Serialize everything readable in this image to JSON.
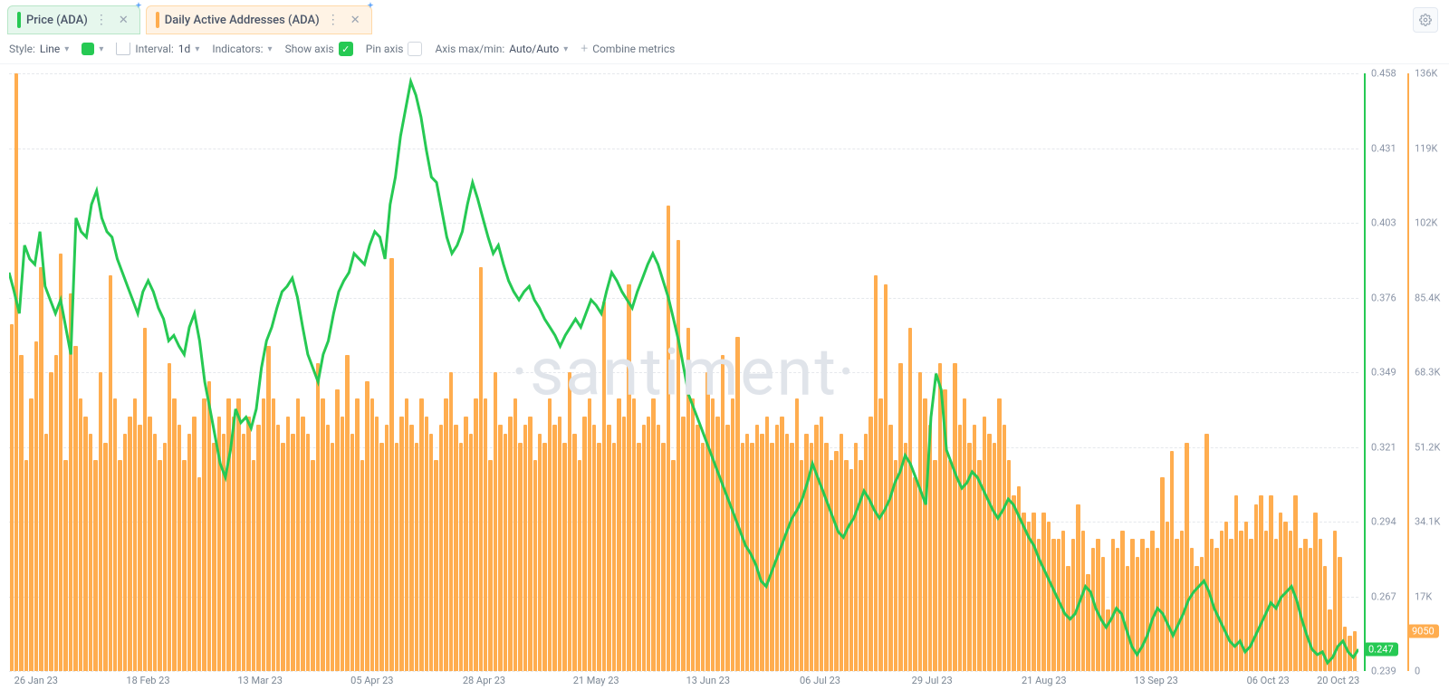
{
  "tabs": [
    {
      "label": "Price (ADA)",
      "color": "#26c953",
      "class": "price"
    },
    {
      "label": "Daily Active Addresses (ADA)",
      "color": "#ffad4f",
      "class": "daa"
    }
  ],
  "toolbar": {
    "style_label": "Style:",
    "style_value": "Line",
    "interval_label": "Interval:",
    "interval_value": "1d",
    "indicators_label": "Indicators:",
    "show_axis_label": "Show axis",
    "pin_axis_label": "Pin axis",
    "axis_minmax_label": "Axis max/min:",
    "axis_minmax_value": "Auto/Auto",
    "combine_label": "Combine metrics"
  },
  "watermark": "·santiment·",
  "colors": {
    "price_line": "#26c953",
    "bar_fill": "#ffad4f",
    "grid": "#e5e8ec",
    "background": "#ffffff",
    "axis_text": "#8a94a6",
    "badge_green": "#26c953",
    "badge_orange": "#ffad4f"
  },
  "chart": {
    "type": "combo-line-bar",
    "x_labels": [
      "26 Jan 23",
      "18 Feb 23",
      "13 Mar 23",
      "05 Apr 23",
      "28 Apr 23",
      "21 May 23",
      "13 Jun 23",
      "06 Jul 23",
      "29 Jul 23",
      "21 Aug 23",
      "13 Sep 23",
      "06 Oct 23",
      "20 Oct 23"
    ],
    "x_positions_pct": [
      2,
      10.3,
      18.6,
      26.9,
      35.2,
      43.5,
      51.8,
      60.1,
      68.4,
      76.7,
      85,
      93.3,
      98.5
    ],
    "price": {
      "ylim": [
        0.239,
        0.458
      ],
      "yticks": [
        0.458,
        0.431,
        0.403,
        0.376,
        0.349,
        0.321,
        0.294,
        0.267,
        0.239
      ],
      "current_badge": "0.247",
      "series": [
        0.385,
        0.378,
        0.37,
        0.395,
        0.39,
        0.388,
        0.4,
        0.38,
        0.375,
        0.37,
        0.375,
        0.365,
        0.355,
        0.405,
        0.4,
        0.398,
        0.41,
        0.415,
        0.405,
        0.4,
        0.398,
        0.39,
        0.385,
        0.38,
        0.375,
        0.37,
        0.378,
        0.382,
        0.378,
        0.372,
        0.368,
        0.36,
        0.362,
        0.358,
        0.355,
        0.365,
        0.37,
        0.36,
        0.345,
        0.335,
        0.325,
        0.315,
        0.31,
        0.32,
        0.335,
        0.33,
        0.332,
        0.328,
        0.335,
        0.35,
        0.36,
        0.365,
        0.372,
        0.378,
        0.38,
        0.383,
        0.376,
        0.365,
        0.355,
        0.35,
        0.345,
        0.355,
        0.36,
        0.37,
        0.378,
        0.382,
        0.385,
        0.392,
        0.39,
        0.388,
        0.395,
        0.4,
        0.398,
        0.39,
        0.41,
        0.42,
        0.435,
        0.445,
        0.455,
        0.45,
        0.442,
        0.43,
        0.42,
        0.418,
        0.408,
        0.398,
        0.392,
        0.395,
        0.4,
        0.41,
        0.418,
        0.412,
        0.405,
        0.398,
        0.392,
        0.395,
        0.388,
        0.382,
        0.378,
        0.375,
        0.378,
        0.38,
        0.375,
        0.372,
        0.368,
        0.365,
        0.362,
        0.358,
        0.362,
        0.365,
        0.368,
        0.365,
        0.37,
        0.375,
        0.373,
        0.37,
        0.378,
        0.385,
        0.382,
        0.378,
        0.375,
        0.372,
        0.378,
        0.383,
        0.388,
        0.392,
        0.388,
        0.382,
        0.376,
        0.368,
        0.36,
        0.35,
        0.34,
        0.335,
        0.33,
        0.325,
        0.32,
        0.315,
        0.31,
        0.305,
        0.3,
        0.295,
        0.29,
        0.285,
        0.282,
        0.278,
        0.272,
        0.27,
        0.275,
        0.28,
        0.285,
        0.29,
        0.295,
        0.298,
        0.302,
        0.308,
        0.315,
        0.31,
        0.305,
        0.3,
        0.295,
        0.29,
        0.288,
        0.292,
        0.295,
        0.3,
        0.305,
        0.302,
        0.298,
        0.295,
        0.298,
        0.302,
        0.308,
        0.312,
        0.318,
        0.315,
        0.31,
        0.305,
        0.3,
        0.332,
        0.348,
        0.342,
        0.32,
        0.315,
        0.31,
        0.306,
        0.308,
        0.312,
        0.31,
        0.306,
        0.302,
        0.298,
        0.295,
        0.298,
        0.302,
        0.3,
        0.296,
        0.292,
        0.288,
        0.285,
        0.28,
        0.276,
        0.272,
        0.268,
        0.264,
        0.26,
        0.258,
        0.26,
        0.265,
        0.27,
        0.268,
        0.262,
        0.258,
        0.255,
        0.258,
        0.262,
        0.26,
        0.254,
        0.248,
        0.245,
        0.248,
        0.252,
        0.258,
        0.262,
        0.26,
        0.256,
        0.252,
        0.256,
        0.26,
        0.265,
        0.268,
        0.27,
        0.272,
        0.268,
        0.262,
        0.258,
        0.254,
        0.25,
        0.248,
        0.25,
        0.246,
        0.248,
        0.252,
        0.256,
        0.26,
        0.264,
        0.262,
        0.266,
        0.268,
        0.27,
        0.265,
        0.258,
        0.252,
        0.247,
        0.245,
        0.246,
        0.242,
        0.244,
        0.248,
        0.25,
        0.246,
        0.244,
        0.247
      ]
    },
    "daa": {
      "ylim": [
        0,
        136000
      ],
      "yticks": [
        136000,
        119000,
        102000,
        85400,
        68300,
        51200,
        34100,
        17000,
        0
      ],
      "ytick_labels": [
        "136K",
        "119K",
        "102K",
        "85.4K",
        "68.3K",
        "51.2K",
        "34.1K",
        "17K",
        "0"
      ],
      "current_badge": "9050",
      "series": [
        79000,
        136000,
        72000,
        48000,
        62000,
        75000,
        92000,
        54000,
        68000,
        72000,
        95000,
        48000,
        86000,
        74000,
        62000,
        58000,
        54000,
        48000,
        68000,
        52000,
        90000,
        62000,
        48000,
        54000,
        58000,
        62000,
        56000,
        78000,
        58000,
        54000,
        48000,
        52000,
        70000,
        62000,
        56000,
        48000,
        54000,
        58000,
        44000,
        62000,
        66000,
        52000,
        58000,
        54000,
        62000,
        58000,
        62000,
        54000,
        58000,
        48000,
        56000,
        62000,
        74000,
        62000,
        56000,
        52000,
        58000,
        54000,
        62000,
        58000,
        54000,
        48000,
        70000,
        62000,
        56000,
        52000,
        64000,
        58000,
        72000,
        54000,
        62000,
        48000,
        66000,
        62000,
        58000,
        52000,
        56000,
        94000,
        52000,
        58000,
        62000,
        56000,
        52000,
        62000,
        58000,
        54000,
        48000,
        56000,
        62000,
        68000,
        56000,
        52000,
        58000,
        54000,
        62000,
        92000,
        62000,
        48000,
        68000,
        56000,
        54000,
        58000,
        62000,
        52000,
        56000,
        58000,
        48000,
        54000,
        52000,
        62000,
        56000,
        58000,
        52000,
        68000,
        54000,
        48000,
        58000,
        62000,
        56000,
        52000,
        84000,
        56000,
        52000,
        62000,
        58000,
        88000,
        62000,
        52000,
        56000,
        58000,
        62000,
        56000,
        52000,
        106000,
        48000,
        98000,
        58000,
        78000,
        62000,
        56000,
        52000,
        68000,
        62000,
        58000,
        72000,
        56000,
        62000,
        76000,
        52000,
        54000,
        52000,
        56000,
        54000,
        58000,
        52000,
        56000,
        58000,
        54000,
        52000,
        62000,
        48000,
        54000,
        52000,
        56000,
        58000,
        52000,
        48000,
        50000,
        54000,
        48000,
        46000,
        52000,
        48000,
        54000,
        58000,
        90000,
        62000,
        88000,
        56000,
        48000,
        70000,
        52000,
        78000,
        44000,
        68000,
        62000,
        56000,
        48000,
        70000,
        64000,
        48000,
        70000,
        56000,
        62000,
        52000,
        56000,
        48000,
        58000,
        54000,
        52000,
        62000,
        56000,
        48000,
        40000,
        42000,
        36000,
        34000,
        36000,
        30000,
        36000,
        34000,
        30000,
        30000,
        32000,
        24000,
        30000,
        38000,
        32000,
        22000,
        28000,
        30000,
        26000,
        14000,
        30000,
        28000,
        32000,
        24000,
        30000,
        26000,
        30000,
        28000,
        32000,
        28000,
        44000,
        34000,
        50000,
        30000,
        32000,
        52000,
        28000,
        24000,
        26000,
        54000,
        30000,
        28000,
        32000,
        34000,
        30000,
        40000,
        32000,
        34000,
        30000,
        38000,
        40000,
        32000,
        40000,
        30000,
        36000,
        34000,
        32000,
        40000,
        28000,
        30000,
        28000,
        36000,
        30000,
        24000,
        14000,
        32000,
        26000,
        10000,
        8000,
        9050
      ]
    }
  }
}
